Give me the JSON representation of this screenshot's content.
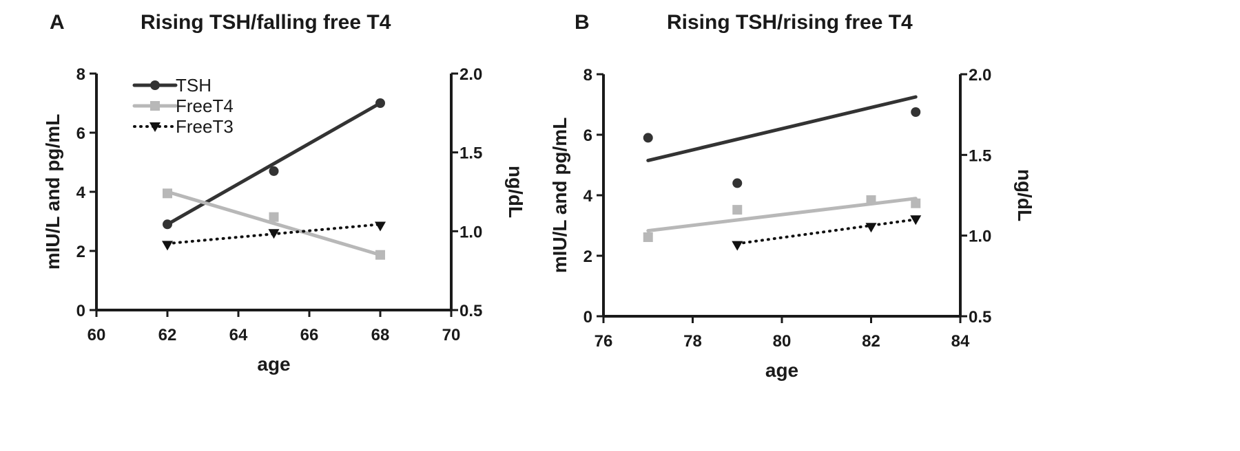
{
  "colors": {
    "TSH": "#333333",
    "FreeT4": "#b8b8b8",
    "FreeT3": "#111111",
    "axis": "#1a1a1a"
  },
  "chart_data": [
    {
      "type": "line",
      "panel": "A",
      "title": "Rising TSH/falling free T4",
      "xlabel": "age",
      "ylabel": "mIU/L and pg/mL",
      "y2label": "ng/dL",
      "xlim": [
        60,
        70
      ],
      "ylim": [
        0,
        8
      ],
      "y2lim": [
        0.5,
        2.0
      ],
      "xticks": [
        "60",
        "62",
        "64",
        "66",
        "68",
        "70"
      ],
      "yticks": [
        "0",
        "2",
        "4",
        "6",
        "8"
      ],
      "y2ticks": [
        "0.5",
        "1.0",
        "1.5",
        "2.0"
      ],
      "legend": {
        "position": "top-left",
        "entries": [
          "TSH",
          "FreeT4",
          "FreeT3"
        ]
      },
      "series": [
        {
          "name": "TSH",
          "axis": "left",
          "marker": "circle",
          "line": "solid",
          "points": [
            [
              62,
              2.9
            ],
            [
              65,
              4.7
            ],
            [
              68,
              7.0
            ]
          ],
          "fit": [
            [
              62,
              2.9
            ],
            [
              68,
              7.0
            ]
          ]
        },
        {
          "name": "FreeT4",
          "axis": "right",
          "marker": "square",
          "line": "solid",
          "points": [
            [
              62,
              1.24
            ],
            [
              65,
              1.09
            ],
            [
              68,
              0.85
            ]
          ],
          "fit": [
            [
              62,
              1.25
            ],
            [
              68,
              0.85
            ]
          ]
        },
        {
          "name": "FreeT3",
          "axis": "left",
          "marker": "triangle-down",
          "line": "dotted",
          "points": [
            [
              62,
              2.2
            ],
            [
              65,
              2.6
            ],
            [
              68,
              2.85
            ]
          ],
          "fit": [
            [
              62,
              2.25
            ],
            [
              68,
              2.9
            ]
          ]
        }
      ]
    },
    {
      "type": "scatter",
      "panel": "B",
      "title": "Rising TSH/rising free T4",
      "xlabel": "age",
      "ylabel": "mIU/L and pg/mL",
      "y2label": "ng/dL",
      "xlim": [
        76,
        84
      ],
      "ylim": [
        0,
        8
      ],
      "y2lim": [
        0.5,
        2.0
      ],
      "xticks": [
        "76",
        "78",
        "80",
        "82",
        "84"
      ],
      "yticks": [
        "0",
        "2",
        "4",
        "6",
        "8"
      ],
      "y2ticks": [
        "0.5",
        "1.0",
        "1.5",
        "2.0"
      ],
      "series": [
        {
          "name": "TSH",
          "axis": "left",
          "marker": "circle",
          "line": "solid",
          "points": [
            [
              77,
              5.9
            ],
            [
              79,
              4.4
            ],
            [
              83,
              6.75
            ]
          ],
          "fit": [
            [
              77,
              5.15
            ],
            [
              83,
              7.25
            ]
          ]
        },
        {
          "name": "FreeT4",
          "axis": "right",
          "marker": "square",
          "line": "solid",
          "points": [
            [
              77,
              0.99
            ],
            [
              79,
              1.16
            ],
            [
              82,
              1.22
            ],
            [
              83,
              1.2
            ]
          ],
          "fit": [
            [
              77,
              1.03
            ],
            [
              83,
              1.23
            ]
          ]
        },
        {
          "name": "FreeT3",
          "axis": "left",
          "marker": "triangle-down",
          "line": "dotted",
          "points": [
            [
              79,
              2.35
            ],
            [
              82,
              2.95
            ],
            [
              83,
              3.2
            ]
          ],
          "fit": [
            [
              79,
              2.4
            ],
            [
              83,
              3.2
            ]
          ]
        }
      ]
    }
  ]
}
